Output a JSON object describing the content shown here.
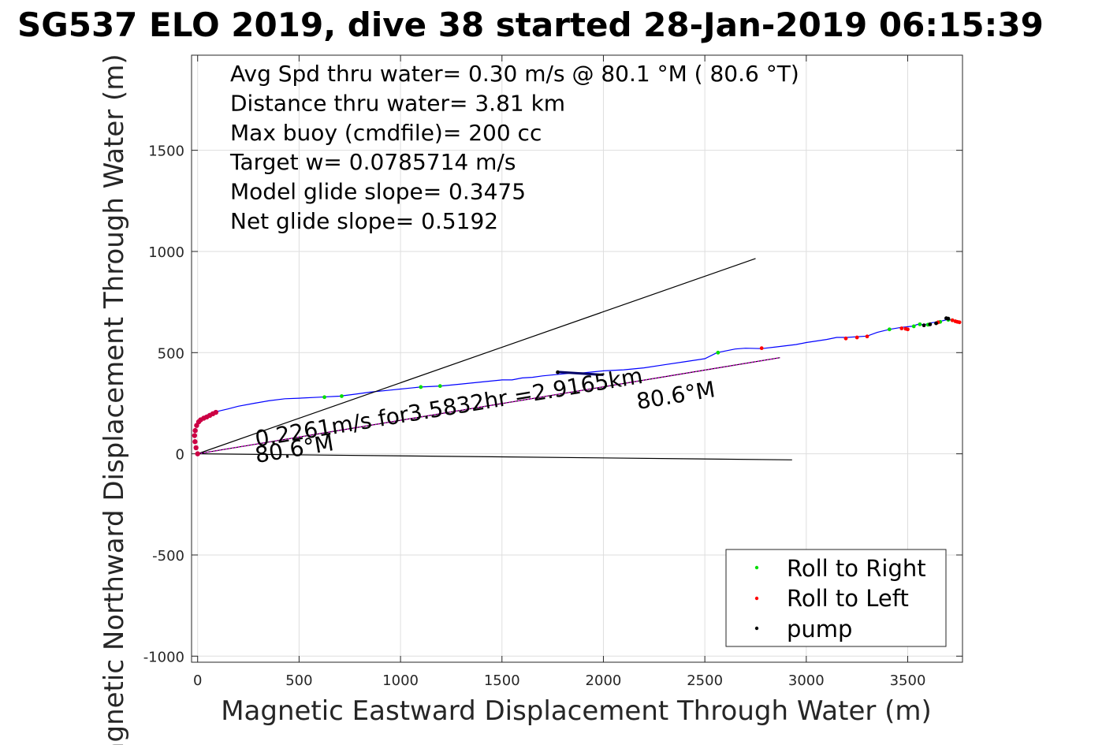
{
  "chart_data": {
    "type": "line",
    "title": "SG537 ELO 2019, dive 38 started 28-Jan-2019 06:15:39",
    "xlabel": "Magnetic Eastward Displacement Through Water (m)",
    "ylabel": "Magnetic Northward Displacement Through Water (m)",
    "xlim": [
      -30,
      3770
    ],
    "ylim": [
      -1030,
      1970
    ],
    "xticks": [
      0,
      500,
      1000,
      1500,
      2000,
      2500,
      3000,
      3500
    ],
    "yticks": [
      -1000,
      -500,
      0,
      500,
      1000,
      1500
    ],
    "grid": true,
    "legend_position": "bottom-right",
    "info_lines": [
      "Avg Spd thru water=  0.30 m/s @  80.1 °M ( 80.6 °T)",
      "Distance thru water=  3.81 km",
      "Max buoy (cmdfile)= 200 cc",
      "Target w= 0.0785714 m/s",
      "Model glide slope= 0.3475",
      "Net glide slope= 0.5192"
    ],
    "annotations": [
      {
        "text": "0.2261m/s for3.5832hr =2.9165km",
        "x": 290,
        "y": 35
      },
      {
        "text": "80.6°M",
        "x": 2170,
        "y": 220
      },
      {
        "text": "80.6°M",
        "x": 290,
        "y": -45
      }
    ],
    "series": [
      {
        "name": "track",
        "color": "#0000ff",
        "x": [
          8,
          20,
          40,
          70,
          100,
          150,
          200,
          280,
          350,
          430,
          500,
          600,
          700,
          780,
          850,
          950,
          1050,
          1100,
          1200,
          1300,
          1400,
          1500,
          1550,
          1600,
          1650,
          1700,
          1780,
          1850,
          1900,
          2000,
          2100,
          2200,
          2300,
          2400,
          2500,
          2560,
          2650,
          2700,
          2780,
          2850,
          2950,
          3000,
          3100,
          3150,
          3200,
          3300,
          3350,
          3410,
          3470,
          3520,
          3550,
          3580,
          3620,
          3650,
          3700,
          3740,
          3760
        ],
        "y": [
          160,
          175,
          190,
          200,
          210,
          222,
          235,
          250,
          262,
          272,
          275,
          280,
          285,
          295,
          305,
          315,
          325,
          330,
          335,
          345,
          355,
          365,
          365,
          375,
          378,
          385,
          393,
          400,
          400,
          410,
          415,
          425,
          440,
          455,
          470,
          500,
          518,
          522,
          520,
          528,
          540,
          550,
          565,
          575,
          575,
          582,
          600,
          615,
          625,
          630,
          640,
          638,
          648,
          652,
          665,
          655,
          652
        ]
      },
      {
        "name": "cone upper",
        "color": "#000000",
        "x": [
          0,
          2750
        ],
        "y": [
          0,
          965
        ]
      },
      {
        "name": "cone lower",
        "color": "#000000",
        "x": [
          0,
          2930
        ],
        "y": [
          0,
          -30
        ]
      },
      {
        "name": "net travel",
        "color": "#000000",
        "x": [
          0,
          2870
        ],
        "y": [
          0,
          475
        ]
      },
      {
        "name": "net travel dashed",
        "color": "#cc00cc",
        "x": [
          0,
          2870
        ],
        "y": [
          0,
          475
        ]
      },
      {
        "name": "current",
        "color": "#000066",
        "x": [
          1770,
          2000
        ],
        "y": [
          405,
          390
        ]
      }
    ],
    "markers": {
      "roll_right": {
        "label": "Roll to Right",
        "color": "#00dd00",
        "x": [
          625,
          710,
          1100,
          1195,
          2565,
          3410,
          3530,
          3560,
          3600,
          3660,
          3700,
          3720
        ],
        "y": [
          280,
          285,
          330,
          335,
          500,
          615,
          630,
          640,
          638,
          652,
          662,
          660
        ]
      },
      "roll_left": {
        "label": "Roll to Left",
        "color": "#ff0000",
        "x": [
          2780,
          3195,
          3250,
          3300,
          3470,
          3490,
          3500,
          3650,
          3720,
          3735,
          3745,
          3755
        ],
        "y": [
          522,
          570,
          575,
          580,
          620,
          618,
          615,
          650,
          660,
          655,
          652,
          650
        ]
      },
      "pump": {
        "label": "pump",
        "color": "#000000",
        "x": [
          1775,
          3580,
          3610,
          3640,
          3690,
          3700
        ],
        "y": [
          403,
          635,
          640,
          645,
          670,
          668
        ]
      },
      "loop": {
        "color": "#cc0044",
        "x": [
          0,
          -8,
          -13,
          -15,
          -12,
          -5,
          5,
          15,
          30,
          45,
          60,
          75,
          90
        ],
        "y": [
          0,
          30,
          60,
          90,
          115,
          140,
          158,
          168,
          176,
          182,
          190,
          198,
          205
        ]
      }
    }
  }
}
